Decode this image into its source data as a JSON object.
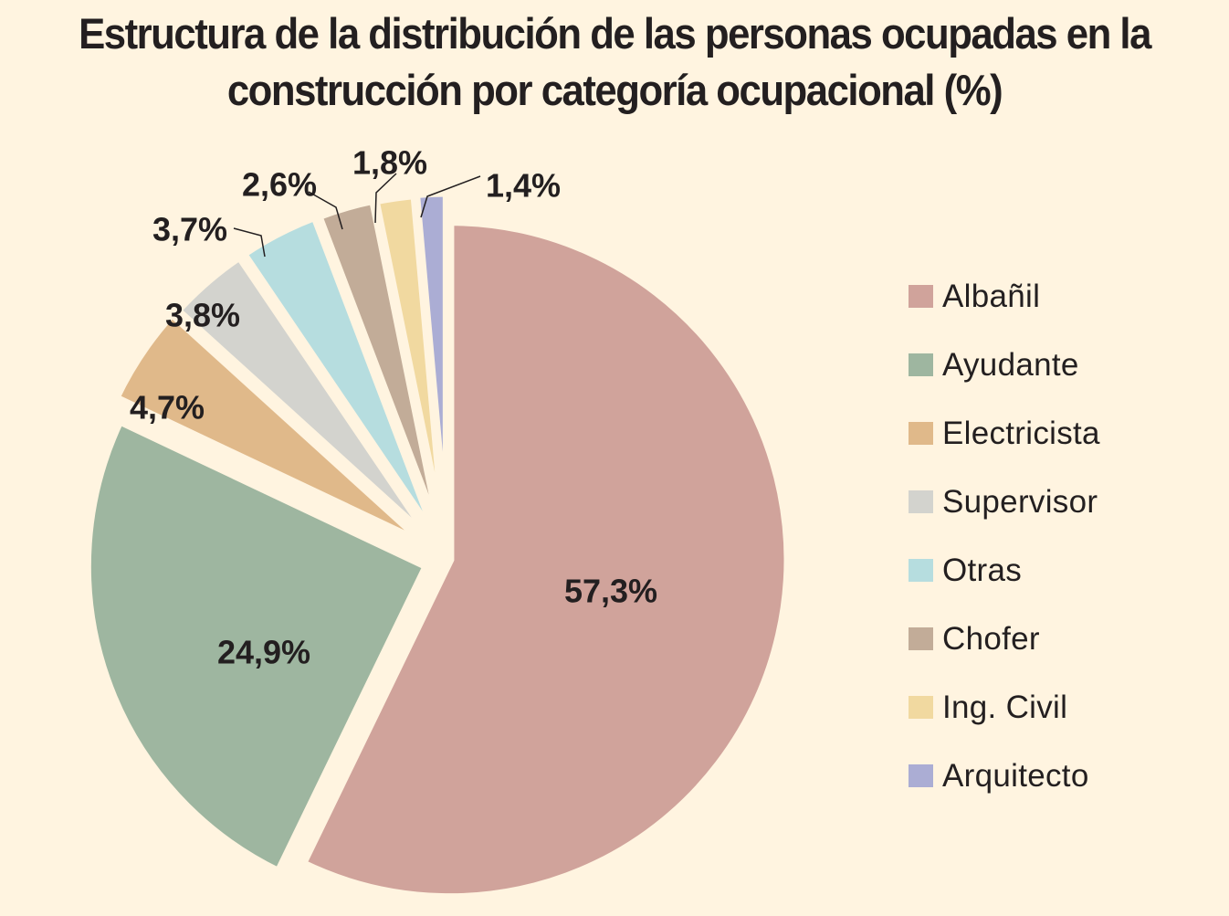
{
  "chart_data": {
    "type": "pie",
    "title_lines": [
      "Estructura de la distribución de las personas ocupadas en la",
      "construcción por categoría ocupacional (%)"
    ],
    "categories": [
      "Albañil",
      "Ayudante",
      "Electricista",
      "Supervisor",
      "Otras",
      "Chofer",
      "Ing. Civil",
      "Arquitecto"
    ],
    "values": [
      57.3,
      24.9,
      4.7,
      3.8,
      3.7,
      2.6,
      1.8,
      1.4
    ],
    "labels": [
      "57,3%",
      "24,9%",
      "4,7%",
      "3,8%",
      "3,7%",
      "2,6%",
      "1,8%",
      "1,4%"
    ],
    "colors": [
      "#D0A39B",
      "#9EB6A0",
      "#E0B98A",
      "#D3D3CE",
      "#B6DDDF",
      "#C2AC98",
      "#F1D9A0",
      "#ABADD4"
    ],
    "start_angle": "top, clockwise",
    "legend_position": "right",
    "background": "#FFF4E0"
  }
}
